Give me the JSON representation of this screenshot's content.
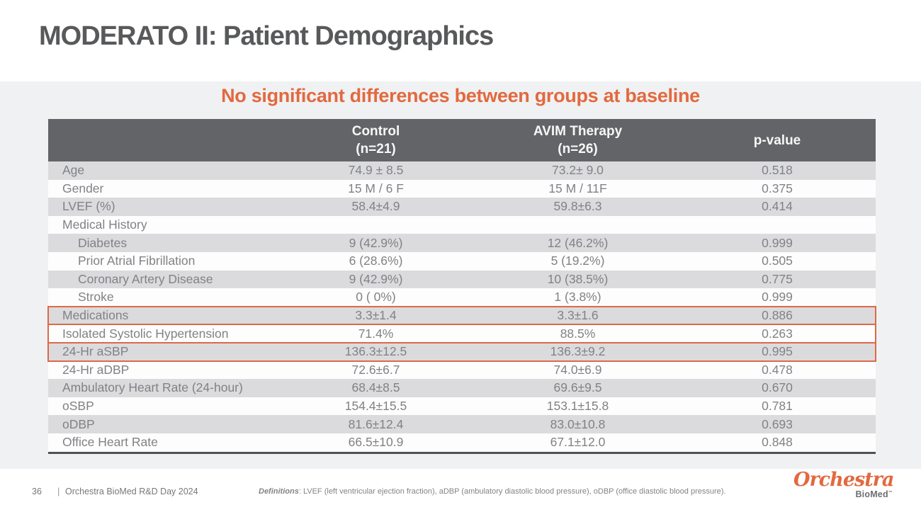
{
  "slide": {
    "title": "MODERATO II: Patient Demographics",
    "subtitle": "No significant differences between groups at baseline"
  },
  "table": {
    "header": {
      "control_line1": "Control",
      "control_line2": "(n=21)",
      "avim_line1": "AVIM Therapy",
      "avim_line2": "(n=26)",
      "pvalue": "p-value"
    },
    "rows": [
      {
        "label": "Age",
        "control": "74.9 ± 8.5",
        "avim": "73.2± 9.0",
        "p": "0.518",
        "indent": false,
        "shaded": true,
        "highlighted": false
      },
      {
        "label": "Gender",
        "control": "15 M / 6 F",
        "avim": "15 M / 11F",
        "p": "0.375",
        "indent": false,
        "shaded": false,
        "highlighted": false
      },
      {
        "label": "LVEF (%)",
        "control": "58.4±4.9",
        "avim": "59.8±6.3",
        "p": "0.414",
        "indent": false,
        "shaded": true,
        "highlighted": false
      },
      {
        "label": "Medical History",
        "control": "",
        "avim": "",
        "p": "",
        "indent": false,
        "shaded": false,
        "highlighted": false
      },
      {
        "label": "Diabetes",
        "control": "9 (42.9%)",
        "avim": "12 (46.2%)",
        "p": "0.999",
        "indent": true,
        "shaded": true,
        "highlighted": false
      },
      {
        "label": "Prior Atrial Fibrillation",
        "control": "6 (28.6%)",
        "avim": "5 (19.2%)",
        "p": "0.505",
        "indent": true,
        "shaded": false,
        "highlighted": false
      },
      {
        "label": "Coronary Artery Disease",
        "control": "9 (42.9%)",
        "avim": "10 (38.5%)",
        "p": "0.775",
        "indent": true,
        "shaded": true,
        "highlighted": false
      },
      {
        "label": "Stroke",
        "control": "0 ( 0%)",
        "avim": "1 (3.8%)",
        "p": "0.999",
        "indent": true,
        "shaded": false,
        "highlighted": false
      },
      {
        "label": "Medications",
        "control": "3.3±1.4",
        "avim": "3.3±1.6",
        "p": "0.886",
        "indent": false,
        "shaded": true,
        "highlighted": true
      },
      {
        "label": "Isolated Systolic Hypertension",
        "control": "71.4%",
        "avim": "88.5%",
        "p": "0.263",
        "indent": false,
        "shaded": false,
        "highlighted": true
      },
      {
        "label": "24-Hr aSBP",
        "control": "136.3±12.5",
        "avim": "136.3±9.2",
        "p": "0.995",
        "indent": false,
        "shaded": true,
        "highlighted": true
      },
      {
        "label": "24-Hr aDBP",
        "control": "72.6±6.7",
        "avim": "74.0±6.9",
        "p": "0.478",
        "indent": false,
        "shaded": false,
        "highlighted": false
      },
      {
        "label": "Ambulatory Heart Rate (24-hour)",
        "control": "68.4±8.5",
        "avim": "69.6±9.5",
        "p": "0.670",
        "indent": false,
        "shaded": true,
        "highlighted": false
      },
      {
        "label": "oSBP",
        "control": "154.4±15.5",
        "avim": "153.1±15.8",
        "p": "0.781",
        "indent": false,
        "shaded": false,
        "highlighted": false
      },
      {
        "label": "oDBP",
        "control": "81.6±12.4",
        "avim": "83.0±10.8",
        "p": "0.693",
        "indent": false,
        "shaded": true,
        "highlighted": false
      },
      {
        "label": "Office Heart Rate",
        "control": "66.5±10.9",
        "avim": "67.1±12.0",
        "p": "0.848",
        "indent": false,
        "shaded": false,
        "highlighted": false
      }
    ]
  },
  "footer": {
    "page_number": "36",
    "separator": "|",
    "event": "Orchestra BioMed R&D Day 2024",
    "definitions_label": "Definitions",
    "definitions_text": ": LVEF (left ventricular ejection fraction), aDBP (ambulatory diastolic blood pressure), oDBP (office diastolic blood pressure).",
    "logo_main": "Orchestra",
    "logo_sub": "BioMed",
    "logo_tm": "™"
  },
  "colors": {
    "accent_orange": "#e2693f",
    "highlight_border": "#dc6a48",
    "header_bg": "#636467",
    "row_shade": "#dbdbdd",
    "content_bg": "#f0f1f2",
    "title_gray": "#58595b",
    "table_text": "#808285"
  }
}
